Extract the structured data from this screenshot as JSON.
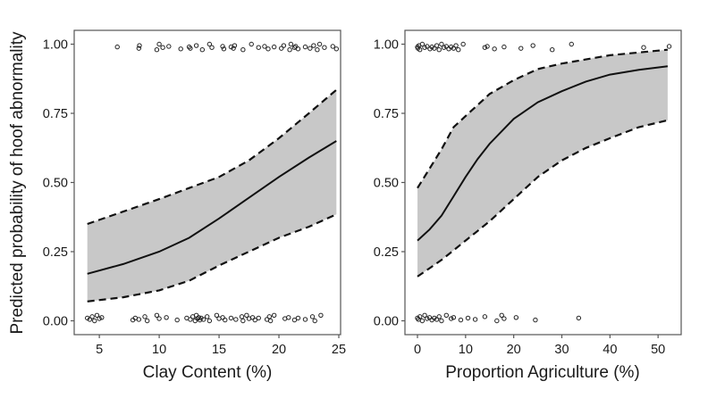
{
  "chart_data": [
    {
      "type": "line",
      "ylabel": "Predicted probability of hoof abnormality",
      "xlabel": "Clay Content (%)",
      "xlim": [
        2.9,
        25.15
      ],
      "ylim": [
        -0.05,
        1.05
      ],
      "xticks": [
        "5",
        "10",
        "15",
        "20",
        "25"
      ],
      "xtick_values": [
        5,
        10,
        15,
        20,
        25
      ],
      "yticks": [
        "0.00",
        "0.25",
        "0.50",
        "0.75",
        "1.00"
      ],
      "ytick_values": [
        0,
        0.25,
        0.5,
        0.75,
        1
      ],
      "grid": false,
      "band_color": "#c8c8c8",
      "fit": {
        "x": [
          4,
          7,
          10,
          12.5,
          15,
          17.5,
          20,
          22.5,
          24.8
        ],
        "y": [
          0.17,
          0.205,
          0.25,
          0.3,
          0.37,
          0.445,
          0.52,
          0.59,
          0.65
        ]
      },
      "lower": {
        "x": [
          4,
          7,
          10,
          12.5,
          15,
          17.5,
          20,
          22.5,
          24.8
        ],
        "y": [
          0.07,
          0.085,
          0.11,
          0.145,
          0.2,
          0.25,
          0.3,
          0.34,
          0.385
        ]
      },
      "upper": {
        "x": [
          4,
          7,
          10,
          12.5,
          15,
          17.5,
          20,
          22.5,
          24.8
        ],
        "y": [
          0.35,
          0.395,
          0.44,
          0.48,
          0.52,
          0.58,
          0.66,
          0.75,
          0.835
        ]
      },
      "points": {
        "x_top": [
          6.5,
          8.3,
          8.35,
          9.8,
          10,
          10.3,
          10.8,
          11.8,
          12.5,
          12.6,
          13.1,
          13.6,
          14.2,
          14.4,
          15.3,
          15.4,
          16,
          16.2,
          16.3,
          17,
          17.7,
          18.3,
          18.8,
          19.1,
          19.6,
          20.2,
          20.4,
          20.9,
          21,
          21.3,
          21.4,
          21.6,
          22.2,
          22.6,
          22.9,
          23.2,
          23.4,
          23.8,
          24.5,
          24.8
        ],
        "x_bottom": [
          4,
          4.2,
          4.4,
          4.6,
          4.8,
          5,
          5.2,
          7.8,
          8,
          8.3,
          8.8,
          9,
          9.8,
          10,
          10.6,
          11.5,
          12.3,
          12.6,
          12.8,
          13,
          13.1,
          13.2,
          13.3,
          13.4,
          13.5,
          13.7,
          14,
          14.2,
          14.8,
          15,
          15.3,
          15.5,
          16,
          16.4,
          16.9,
          17,
          17.3,
          17.5,
          17.8,
          18,
          18.3,
          19,
          19.2,
          19.3,
          19.6,
          20.5,
          20.8,
          21.3,
          21.6,
          22.2,
          22.8,
          23,
          23.5
        ]
      }
    },
    {
      "type": "line",
      "xlabel": "Proportion Agriculture (%)",
      "xlim": [
        -2.6,
        54.8
      ],
      "ylim": [
        -0.05,
        1.05
      ],
      "xticks": [
        "0",
        "10",
        "20",
        "30",
        "40",
        "50"
      ],
      "xtick_values": [
        0,
        10,
        20,
        30,
        40,
        50
      ],
      "yticks": [
        "0.00",
        "0.25",
        "0.50",
        "0.75",
        "1.00"
      ],
      "ytick_values": [
        0,
        0.25,
        0.5,
        0.75,
        1
      ],
      "grid": false,
      "band_color": "#c8c8c8",
      "fit": {
        "x": [
          0,
          2.5,
          5,
          7.5,
          10,
          12.5,
          15,
          20,
          25,
          30,
          35,
          40,
          46,
          52
        ],
        "y": [
          0.29,
          0.33,
          0.38,
          0.45,
          0.52,
          0.585,
          0.64,
          0.73,
          0.79,
          0.83,
          0.865,
          0.89,
          0.907,
          0.92
        ]
      },
      "lower": {
        "x": [
          0,
          2.5,
          5,
          7.5,
          10,
          12.5,
          15,
          20,
          25,
          30,
          35,
          40,
          46,
          52
        ],
        "y": [
          0.16,
          0.19,
          0.22,
          0.255,
          0.29,
          0.325,
          0.36,
          0.44,
          0.52,
          0.58,
          0.625,
          0.66,
          0.7,
          0.725
        ]
      },
      "upper": {
        "x": [
          0,
          2.5,
          5,
          7.5,
          10,
          12.5,
          15,
          20,
          25,
          30,
          35,
          40,
          46,
          52
        ],
        "y": [
          0.48,
          0.55,
          0.62,
          0.7,
          0.74,
          0.78,
          0.82,
          0.87,
          0.91,
          0.93,
          0.945,
          0.96,
          0.97,
          0.98
        ]
      },
      "points": {
        "x_top": [
          0,
          0.1,
          0.3,
          0.5,
          1,
          1.5,
          2,
          2.6,
          3,
          3.5,
          4,
          4.5,
          5,
          5.5,
          6,
          6.5,
          7,
          7.5,
          8,
          8.5,
          9.5,
          14,
          14.5,
          16,
          18,
          21.5,
          24,
          28,
          32,
          47,
          52.3
        ],
        "x_bottom": [
          0,
          0.2,
          0.5,
          1,
          1.5,
          2,
          2.5,
          3,
          3.5,
          4,
          4.5,
          5,
          6,
          7,
          7.5,
          9,
          10.5,
          12,
          14,
          16.5,
          17.5,
          18,
          20.5,
          24.5,
          33.5
        ]
      }
    }
  ]
}
